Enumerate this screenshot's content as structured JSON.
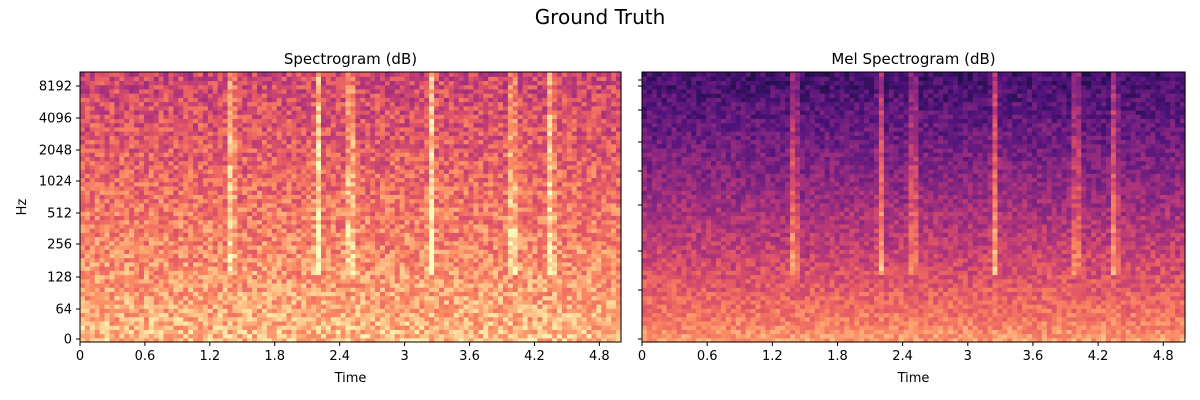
{
  "figure": {
    "title": "Ground Truth"
  },
  "colors": {
    "colormap": [
      "#000004",
      "#1c1044",
      "#4f127b",
      "#812581",
      "#b5367a",
      "#e55964",
      "#fb8761",
      "#fec287",
      "#fcfdbf"
    ]
  },
  "chart_data": [
    {
      "type": "heatmap",
      "title": "Spectrogram (dB)",
      "xlabel": "Time",
      "ylabel": "Hz",
      "xlim": [
        0,
        5.0
      ],
      "xticks": [
        0,
        0.6,
        1.2,
        1.8,
        2.4,
        3,
        3.6,
        4.2,
        4.8
      ],
      "xtick_labels": [
        "0",
        "0.6",
        "1.2",
        "1.8",
        "2.4",
        "3",
        "3.6",
        "4.2",
        "4.8"
      ],
      "yscale": "symlog",
      "ylim": [
        0,
        11025
      ],
      "yticks": [
        0,
        64,
        128,
        256,
        512,
        1024,
        2048,
        4096,
        8192
      ],
      "ytick_labels": [
        "0",
        "64",
        "128",
        "256",
        "512",
        "1024",
        "2048",
        "4096",
        "8192"
      ],
      "colormap": "magma",
      "transient_times": [
        1.4,
        2.2,
        2.5,
        3.25,
        4.0,
        4.35
      ],
      "grid": false
    },
    {
      "type": "heatmap",
      "title": "Mel Spectrogram (dB)",
      "xlabel": "Time",
      "ylabel": "",
      "xlim": [
        0,
        5.0
      ],
      "xticks": [
        0,
        0.6,
        1.2,
        1.8,
        2.4,
        3,
        3.6,
        4.2,
        4.8
      ],
      "xtick_labels": [
        "0",
        "0.6",
        "1.2",
        "1.8",
        "2.4",
        "3",
        "3.6",
        "4.2",
        "4.8"
      ],
      "yscale": "mel",
      "ylim": [
        0,
        11025
      ],
      "yticks": [
        0,
        64,
        128,
        256,
        512,
        1024,
        2048,
        4096,
        8192
      ],
      "ytick_labels": [],
      "colormap": "magma",
      "transient_times": [
        1.4,
        2.2,
        2.5,
        3.25,
        4.0,
        4.35
      ],
      "grid": false
    }
  ]
}
